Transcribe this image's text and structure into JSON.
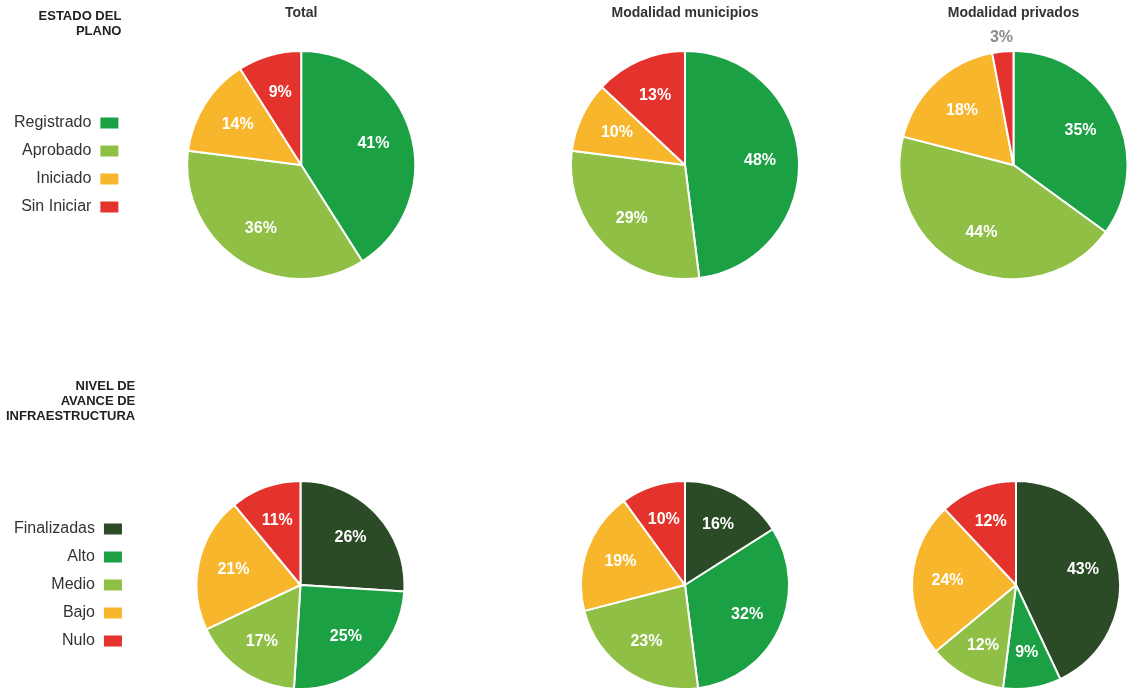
{
  "chart_data": [
    {
      "type": "pie",
      "title": "Total",
      "legend_title": "ESTADO DEL PLANO",
      "legend": "left",
      "categories": [
        "Registrado",
        "Aprobado",
        "Iniciado",
        "Sin Iniciar"
      ],
      "values": [
        41,
        36,
        14,
        9
      ],
      "value_labels": [
        "41%",
        "36%",
        "14%",
        "9%"
      ],
      "colors": [
        "#1ba143",
        "#8fbf45",
        "#f8b62c",
        "#e4322d"
      ]
    },
    {
      "type": "pie",
      "title": "Modalidad municipios",
      "values": [
        48,
        29,
        10,
        13
      ],
      "value_labels": [
        "48%",
        "29%",
        "10%",
        "13%"
      ],
      "colors": [
        "#1ba143",
        "#8fbf45",
        "#f8b62c",
        "#e4322d"
      ]
    },
    {
      "type": "pie",
      "title": "Modalidad privados",
      "values": [
        35,
        44,
        18,
        3
      ],
      "value_labels": [
        "35%",
        "44%",
        "18%",
        "3%"
      ],
      "colors": [
        "#1ba143",
        "#8fbf45",
        "#f8b62c",
        "#e4322d"
      ]
    },
    {
      "type": "pie",
      "legend_title": "NIVEL DE AVANCE DE INFRAESTRUCTURA",
      "legend": "left",
      "categories": [
        "Finalizadas",
        "Alto",
        "Medio",
        "Bajo",
        "Nulo"
      ],
      "values": [
        26,
        25,
        17,
        21,
        11
      ],
      "value_labels": [
        "26%",
        "25%",
        "17%",
        "21%",
        "11%"
      ],
      "colors": [
        "#2b4a26",
        "#1ba143",
        "#8fbf45",
        "#f8b62c",
        "#e4322d"
      ]
    },
    {
      "type": "pie",
      "values": [
        16,
        32,
        23,
        19,
        10
      ],
      "value_labels": [
        "16%",
        "32%",
        "23%",
        "19%",
        "10%"
      ],
      "colors": [
        "#2b4a26",
        "#1ba143",
        "#8fbf45",
        "#f8b62c",
        "#e4322d"
      ]
    },
    {
      "type": "pie",
      "values": [
        43,
        9,
        12,
        24,
        12
      ],
      "value_labels": [
        "43%",
        "9%",
        "12%",
        "24%",
        "12%"
      ],
      "colors": [
        "#2b4a26",
        "#1ba143",
        "#8fbf45",
        "#f8b62c",
        "#e4322d"
      ]
    }
  ]
}
